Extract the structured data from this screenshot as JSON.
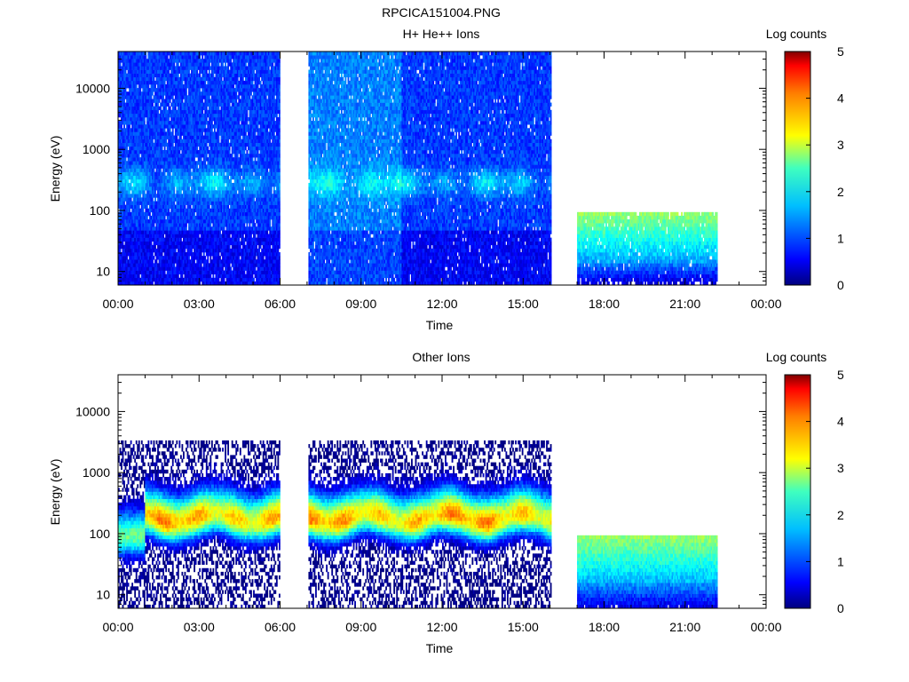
{
  "page": {
    "filename": "RPCICA151004.PNG"
  },
  "colorbar_ticks": [
    "0",
    "1",
    "2",
    "3",
    "4",
    "5"
  ],
  "chart_data": [
    {
      "type": "heatmap",
      "title": "H+ He++ Ions",
      "xlabel": "Time",
      "ylabel": "Energy (eV)",
      "y_scale": "log",
      "ylim": [
        6,
        40000
      ],
      "xlim_hours": [
        0,
        24
      ],
      "x_ticks": [
        "00:00",
        "03:00",
        "06:00",
        "09:00",
        "12:00",
        "15:00",
        "18:00",
        "21:00",
        "00:00"
      ],
      "y_ticks": [
        "10",
        "100",
        "1000",
        "10000"
      ],
      "colorbar": {
        "label": "Log counts",
        "range": [
          0,
          5
        ]
      },
      "coverage_hours": [
        [
          0.0,
          6.0
        ],
        [
          7.05,
          16.05
        ],
        [
          17.0,
          22.2
        ]
      ],
      "gaps_hours": [
        [
          6.0,
          7.05
        ],
        [
          16.05,
          17.0
        ],
        [
          22.2,
          24.0
        ]
      ],
      "summary": {
        "background_log_counts": 1.0,
        "peak_energy_band_eV": [
          120,
          600
        ],
        "peak_log_counts": 2.0
      }
    },
    {
      "type": "heatmap",
      "title": "Other Ions",
      "xlabel": "Time",
      "ylabel": "Energy (eV)",
      "y_scale": "log",
      "ylim": [
        6,
        40000
      ],
      "xlim_hours": [
        0,
        24
      ],
      "x_ticks": [
        "00:00",
        "03:00",
        "06:00",
        "09:00",
        "12:00",
        "15:00",
        "18:00",
        "21:00",
        "00:00"
      ],
      "y_ticks": [
        "10",
        "100",
        "1000",
        "10000"
      ],
      "colorbar": {
        "label": "Log counts",
        "range": [
          0,
          5
        ]
      },
      "coverage_hours": [
        [
          0.0,
          6.0
        ],
        [
          7.05,
          16.05
        ],
        [
          17.0,
          22.2
        ]
      ],
      "gaps_hours": [
        [
          6.0,
          7.05
        ],
        [
          16.05,
          17.0
        ],
        [
          22.2,
          24.0
        ]
      ],
      "summary": {
        "peak_energy_eV": 180,
        "peak_energy_band_eV": [
          60,
          800
        ],
        "peak_log_counts": 3.6
      }
    }
  ]
}
